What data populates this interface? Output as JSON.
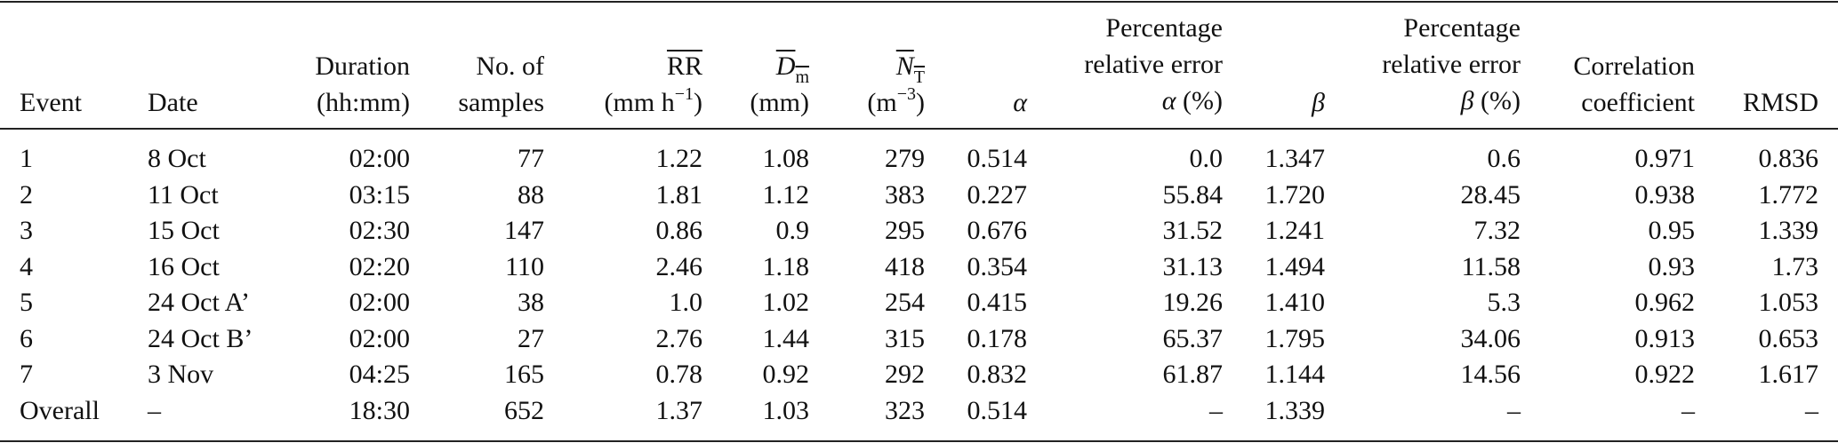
{
  "table": {
    "headers": {
      "event": "Event",
      "date": "Date",
      "duration": [
        "Duration",
        "(hh:mm)"
      ],
      "samples": [
        "No. of",
        "samples"
      ],
      "rr": {
        "symbol": "RR",
        "unit_pre": "(mm h",
        "unit_sup": "−1",
        "unit_post": ")"
      },
      "dm": {
        "symbol": "D",
        "sub": "m",
        "unit": "(mm)"
      },
      "nt": {
        "symbol": "N",
        "sub": "T",
        "unit_pre": "(m",
        "unit_sup": "−3",
        "unit_post": ")"
      },
      "alpha": "α",
      "alpha_err": [
        "Percentage",
        "relative error",
        "α (%)"
      ],
      "beta": "β",
      "beta_err": [
        "Percentage",
        "relative error",
        "β (%)"
      ],
      "corr": [
        "Correlation",
        "coefficient"
      ],
      "rmsd": "RMSD"
    },
    "rows": [
      [
        "1",
        "8 Oct",
        "02:00",
        "77",
        "1.22",
        "1.08",
        "279",
        "0.514",
        "0.0",
        "1.347",
        "0.6",
        "0.971",
        "0.836"
      ],
      [
        "2",
        "11 Oct",
        "03:15",
        "88",
        "1.81",
        "1.12",
        "383",
        "0.227",
        "55.84",
        "1.720",
        "28.45",
        "0.938",
        "1.772"
      ],
      [
        "3",
        "15 Oct",
        "02:30",
        "147",
        "0.86",
        "0.9",
        "295",
        "0.676",
        "31.52",
        "1.241",
        "7.32",
        "0.95",
        "1.339"
      ],
      [
        "4",
        "16 Oct",
        "02:20",
        "110",
        "2.46",
        "1.18",
        "418",
        "0.354",
        "31.13",
        "1.494",
        "11.58",
        "0.93",
        "1.73"
      ],
      [
        "5",
        "24 Oct A’",
        "02:00",
        "38",
        "1.0",
        "1.02",
        "254",
        "0.415",
        "19.26",
        "1.410",
        "5.3",
        "0.962",
        "1.053"
      ],
      [
        "6",
        "24 Oct B’",
        "02:00",
        "27",
        "2.76",
        "1.44",
        "315",
        "0.178",
        "65.37",
        "1.795",
        "34.06",
        "0.913",
        "0.653"
      ],
      [
        "7",
        "3 Nov",
        "04:25",
        "165",
        "0.78",
        "0.92",
        "292",
        "0.832",
        "61.87",
        "1.144",
        "14.56",
        "0.922",
        "1.617"
      ],
      [
        "Overall",
        "–",
        "18:30",
        "652",
        "1.37",
        "1.03",
        "323",
        "0.514",
        "–",
        "1.339",
        "–",
        "–",
        "–"
      ]
    ]
  }
}
